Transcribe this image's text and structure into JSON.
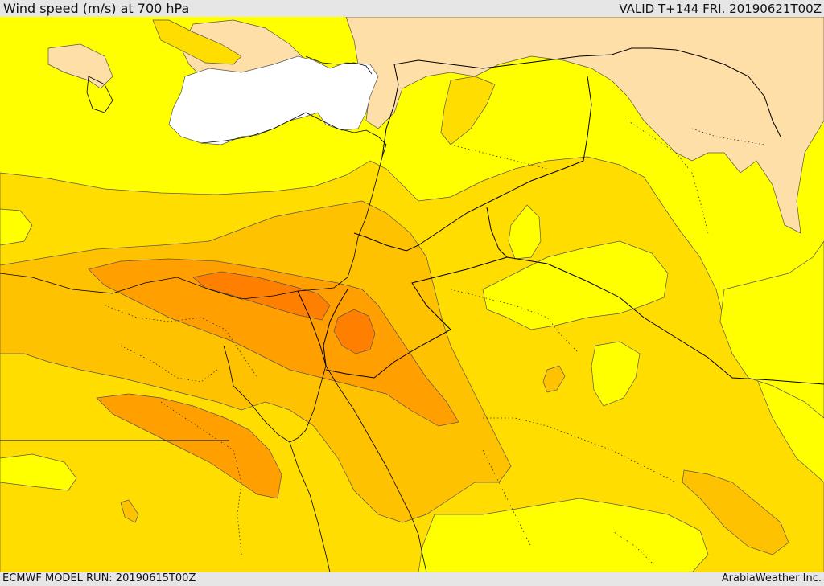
{
  "header": {
    "title": "Wind speed (m/s) at 700 hPa",
    "valid": "VALID T+144 FRI. 20190621T00Z"
  },
  "footer": {
    "model_run": "ECMWF MODEL RUN: 20190615T00Z",
    "credit": "ArabiaWeather Inc."
  },
  "palette": {
    "calm": "#ffffff",
    "very_light": "#ffdfa8",
    "light": "#ffff00",
    "moderate": "#ffdd00",
    "fresh": "#ffc200",
    "strong": "#ff9f00",
    "very_strong": "#ff7f00",
    "contour_line": "#555555",
    "border_line": "#000000"
  }
}
